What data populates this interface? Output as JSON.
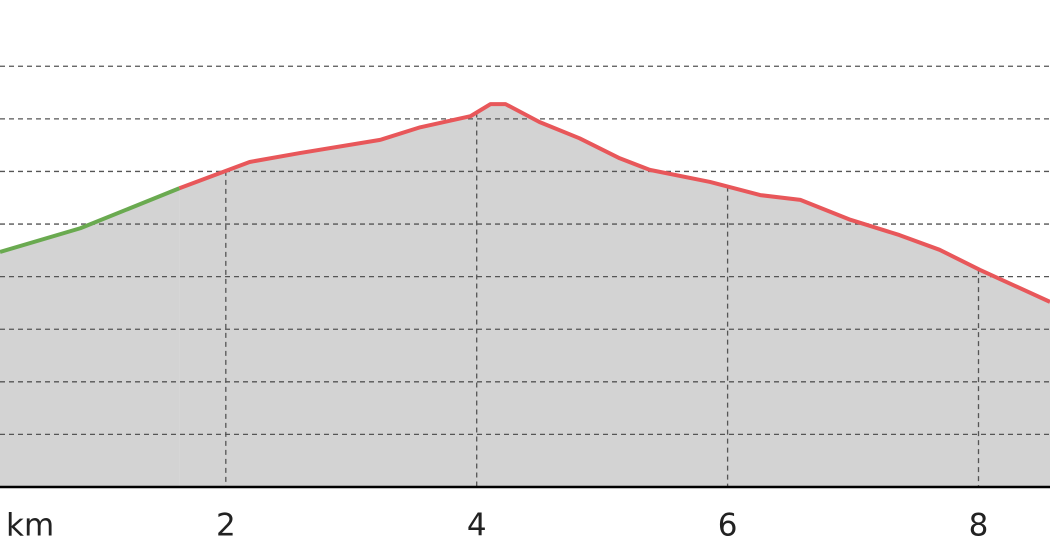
{
  "chart_data": {
    "type": "area",
    "x_label": "km",
    "x": [
      0.2,
      0.84,
      1.63,
      2.19,
      2.59,
      3.23,
      3.55,
      3.95,
      4.11,
      4.23,
      4.5,
      4.82,
      5.14,
      5.38,
      5.86,
      6.26,
      6.58,
      6.98,
      7.37,
      7.69,
      8.01,
      8.57
    ],
    "series": [
      {
        "color": "#6aaa50",
        "values": [
          4.47,
          4.92,
          5.68,
          null,
          null,
          null,
          null,
          null,
          null,
          null,
          null,
          null,
          null,
          null,
          null,
          null,
          null,
          null,
          null,
          null,
          null,
          null
        ]
      },
      {
        "color": "#e8575a",
        "values": [
          null,
          null,
          5.68,
          6.18,
          6.35,
          6.6,
          6.84,
          7.05,
          7.28,
          7.28,
          6.94,
          6.63,
          6.25,
          6.03,
          5.8,
          5.55,
          5.46,
          5.08,
          4.79,
          4.51,
          4.13,
          3.52
        ]
      }
    ],
    "fill": "#d3d3d3",
    "xlim": [
      0.2,
      8.57
    ],
    "xticks": [
      2,
      4,
      6,
      8
    ],
    "ylim": [
      0,
      9.26
    ],
    "yticks": [
      1,
      2,
      3,
      4,
      5,
      6,
      7,
      8
    ],
    "grid": true
  }
}
